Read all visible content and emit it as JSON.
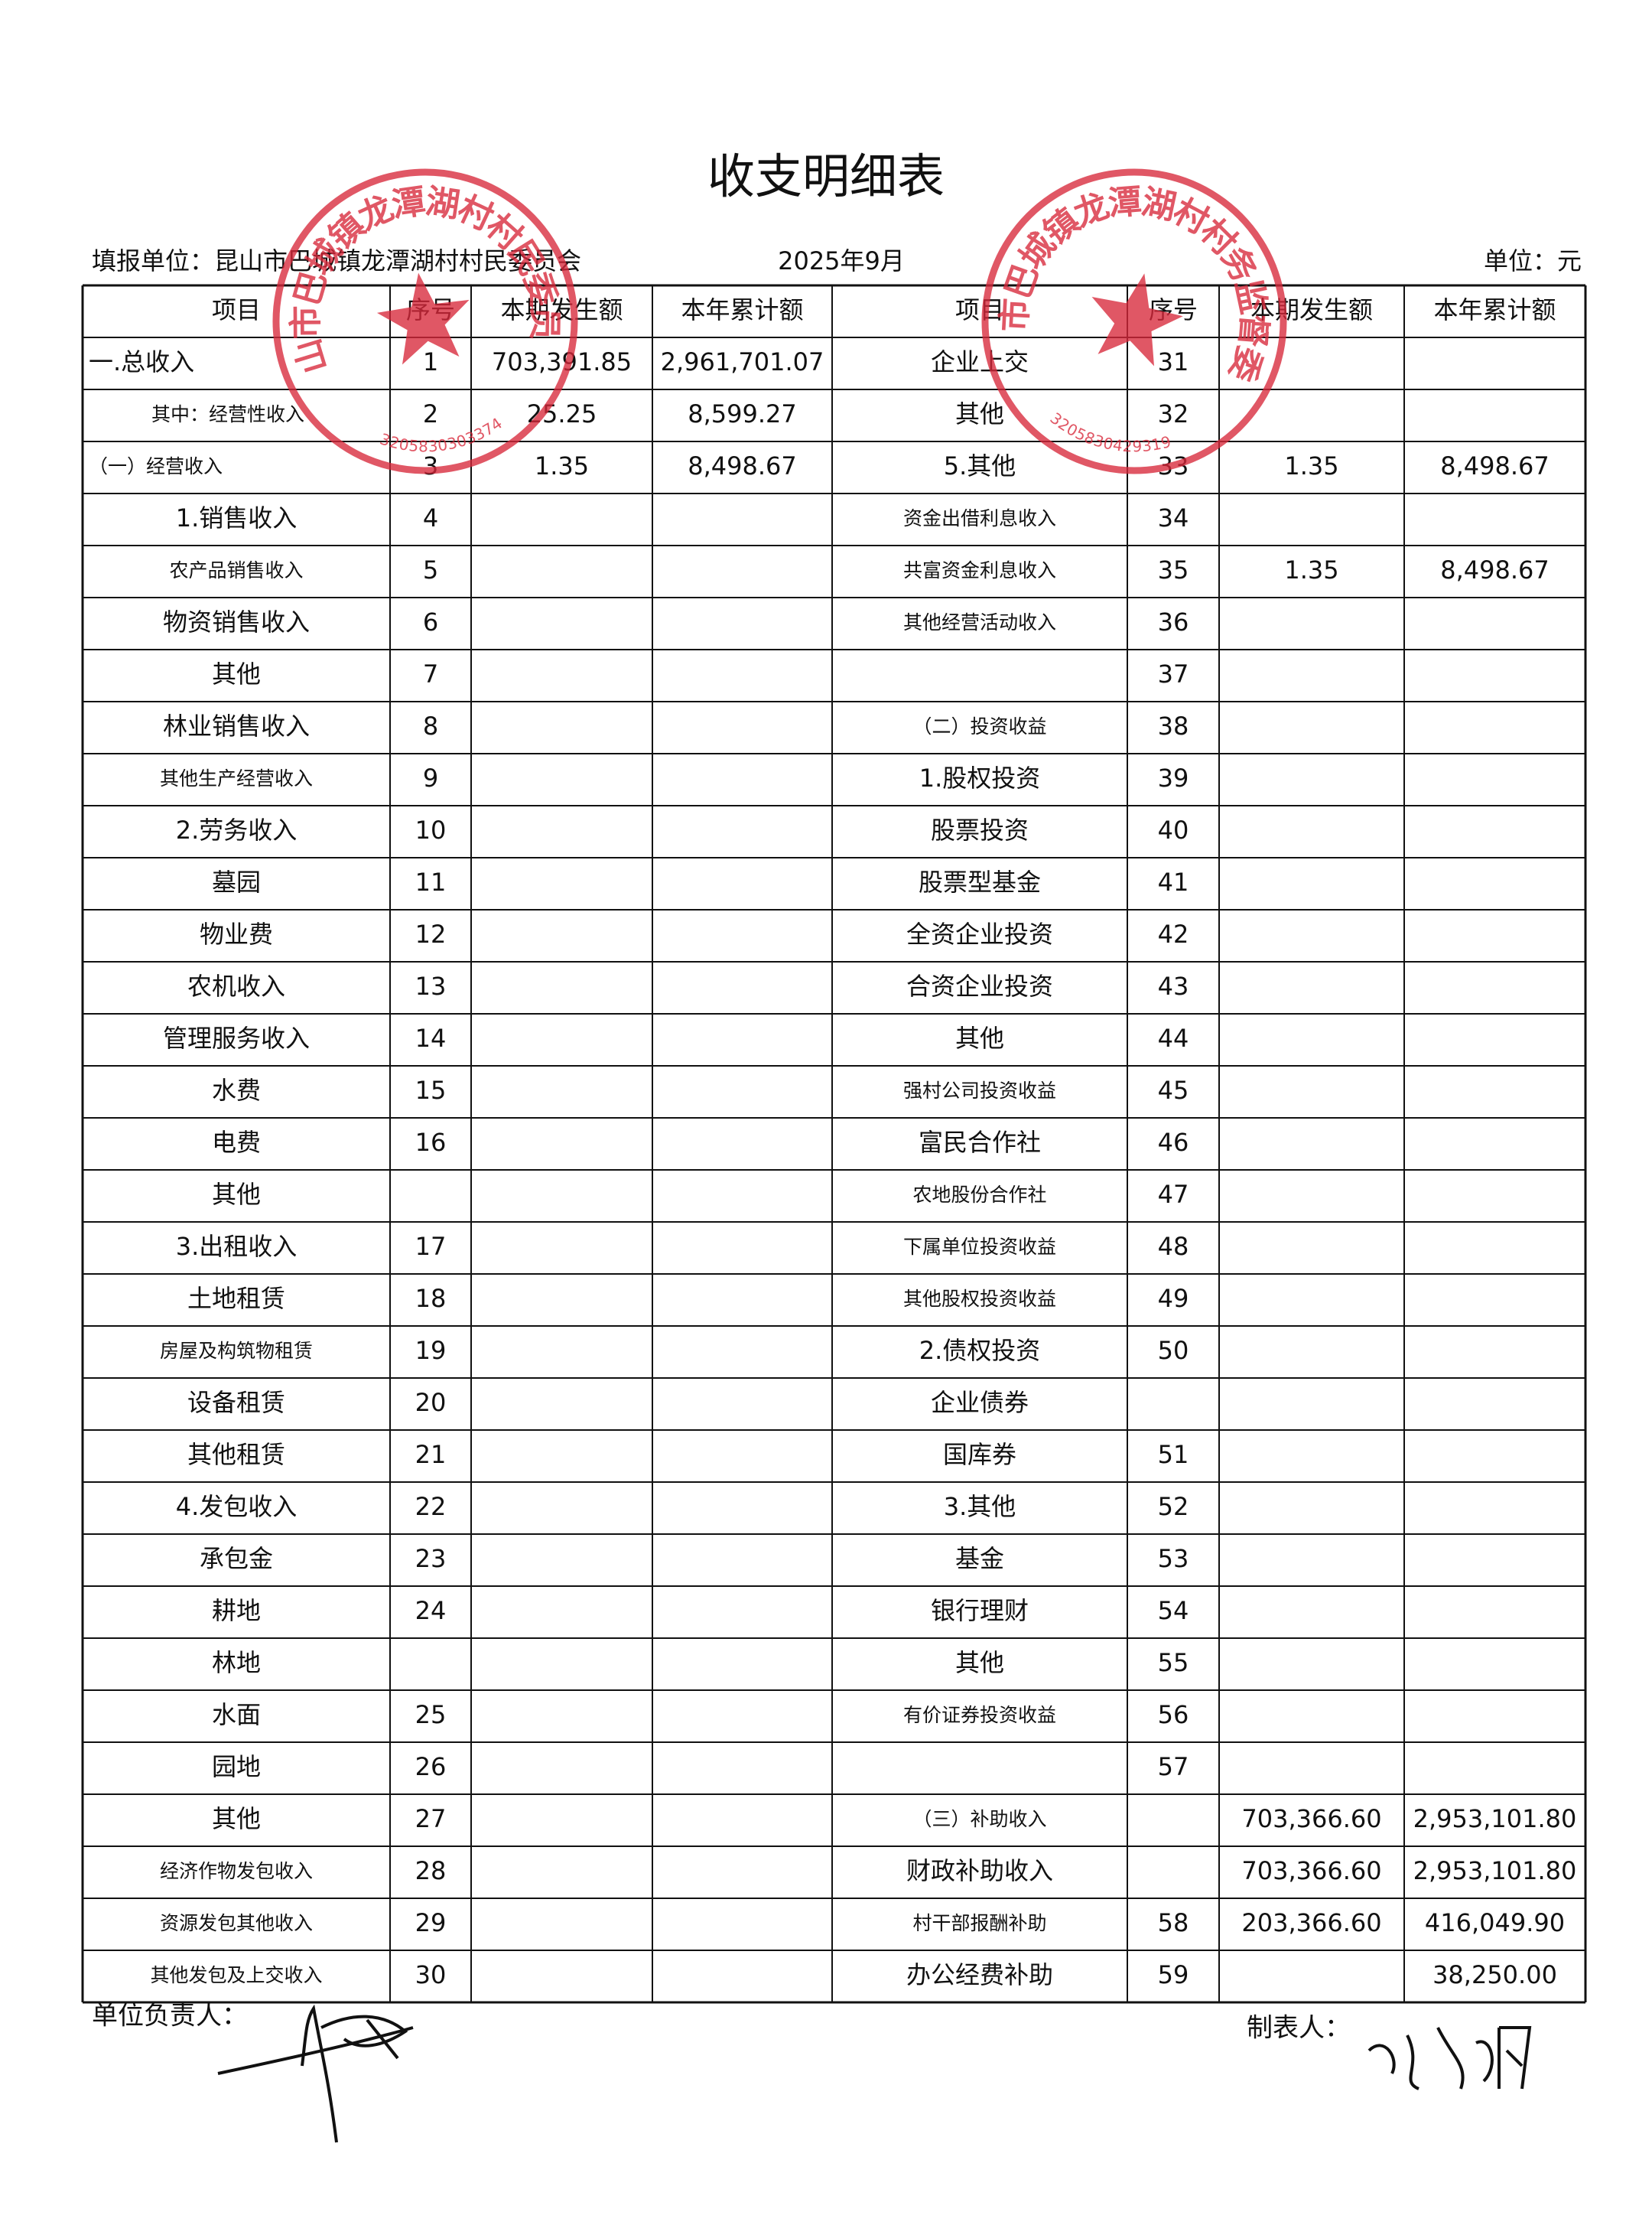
{
  "header": {
    "title": "收支明细表",
    "unit_name": "填报单位：昆山市巴城镇龙潭湖村村民委员会",
    "period": "2025年9月",
    "currency": "单位：元"
  },
  "table": {
    "columns": [
      "项目",
      "序号",
      "本期发生额",
      "本年累计额",
      "项目",
      "序号",
      "本期发生额",
      "本年累计额"
    ],
    "rows": [
      [
        "一.总收入",
        1,
        "703,391.85",
        "2,961,701.07",
        "企业上交",
        31,
        null,
        null
      ],
      [
        "其中：经营性收入",
        2,
        "25.25",
        "8,599.27",
        "其他",
        32,
        null,
        null
      ],
      [
        "（一）经营收入",
        3,
        "1.35",
        "8,498.67",
        "5.其他",
        33,
        "1.35",
        "8,498.67"
      ],
      [
        "1.销售收入",
        4,
        null,
        null,
        "资金出借利息收入",
        34,
        null,
        null
      ],
      [
        "农产品销售收入",
        5,
        null,
        null,
        "共富资金利息收入",
        35,
        "1.35",
        "8,498.67"
      ],
      [
        "物资销售收入",
        6,
        null,
        null,
        "其他经营活动收入",
        36,
        null,
        null
      ],
      [
        "其他",
        7,
        null,
        null,
        null,
        37,
        null,
        null
      ],
      [
        "林业销售收入",
        8,
        null,
        null,
        "（二）投资收益",
        38,
        null,
        null
      ],
      [
        "其他生产经营收入",
        9,
        null,
        null,
        "1.股权投资",
        39,
        null,
        null
      ],
      [
        "2.劳务收入",
        10,
        null,
        null,
        "股票投资",
        40,
        null,
        null
      ],
      [
        "墓园",
        11,
        null,
        null,
        "股票型基金",
        41,
        null,
        null
      ],
      [
        "物业费",
        12,
        null,
        null,
        "全资企业投资",
        42,
        null,
        null
      ],
      [
        "农机收入",
        13,
        null,
        null,
        "合资企业投资",
        43,
        null,
        null
      ],
      [
        "管理服务收入",
        14,
        null,
        null,
        "其他",
        44,
        null,
        null
      ],
      [
        "水费",
        15,
        null,
        null,
        "强村公司投资收益",
        45,
        null,
        null
      ],
      [
        "电费",
        16,
        null,
        null,
        "富民合作社",
        46,
        null,
        null
      ],
      [
        "其他",
        null,
        null,
        null,
        "农地股份合作社",
        47,
        null,
        null
      ],
      [
        "3.出租收入",
        17,
        null,
        null,
        "下属单位投资收益",
        48,
        null,
        null
      ],
      [
        "土地租赁",
        18,
        null,
        null,
        "其他股权投资收益",
        49,
        null,
        null
      ],
      [
        "房屋及构筑物租赁",
        19,
        null,
        null,
        "2.债权投资",
        50,
        null,
        null
      ],
      [
        "设备租赁",
        20,
        null,
        null,
        "企业债券",
        null,
        null,
        null
      ],
      [
        "其他租赁",
        21,
        null,
        null,
        "国库券",
        51,
        null,
        null
      ],
      [
        "4.发包收入",
        22,
        null,
        null,
        "3.其他",
        52,
        null,
        null
      ],
      [
        "承包金",
        23,
        null,
        null,
        "基金",
        53,
        null,
        null
      ],
      [
        "耕地",
        24,
        null,
        null,
        "银行理财",
        54,
        null,
        null
      ],
      [
        "林地",
        null,
        null,
        null,
        "其他",
        55,
        null,
        null
      ],
      [
        "水面",
        25,
        null,
        null,
        "有价证券投资收益",
        56,
        null,
        null
      ],
      [
        "园地",
        26,
        null,
        null,
        null,
        57,
        null,
        null
      ],
      [
        "其他",
        27,
        null,
        null,
        "（三）补助收入",
        null,
        "703,366.60",
        "2,953,101.80"
      ],
      [
        "经济作物发包收入",
        28,
        null,
        null,
        "财政补助收入",
        null,
        "703,366.60",
        "2,953,101.80"
      ],
      [
        "资源发包其他收入",
        29,
        null,
        null,
        "村干部报酬补助",
        58,
        "203,366.60",
        "416,049.90"
      ],
      [
        "其他发包及上交收入",
        30,
        null,
        null,
        "办公经费补助",
        59,
        null,
        "38,250.00"
      ]
    ]
  },
  "footer": {
    "principal": "单位负责人：",
    "preparer": "制表人："
  },
  "stamps": [
    {
      "text": "昆山市巴城镇龙潭湖村村民委员会",
      "code": "3205830303374"
    },
    {
      "text": "昆山市巴城镇龙潭湖村村务监督委员会",
      "code": "3205830429319"
    }
  ]
}
